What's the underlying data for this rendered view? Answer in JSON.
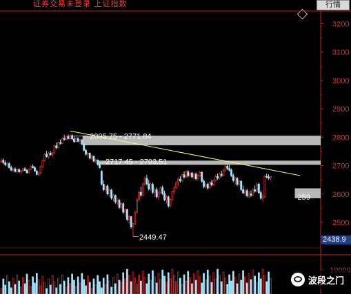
{
  "titlebar": {
    "title": "证券交易未登录  上证指数",
    "quote_button": "行情"
  },
  "current_price": "2438.9",
  "cut_label": "259",
  "watermark": "波段之门",
  "colors": {
    "up": "#e03030",
    "down": "#a0e8ff",
    "trendline": "#ffff66",
    "zone": "#c8c8c8",
    "axis": "#c82020"
  },
  "chart_data": {
    "type": "candlestick",
    "y_axis": {
      "ticks": [
        2500,
        2600,
        2700,
        2800,
        2900,
        3000,
        3100,
        3200
      ],
      "tick_labels": [
        "2500",
        "2600",
        "2700",
        "2800",
        "2900",
        "3000",
        "3100",
        "3200"
      ],
      "range": [
        2415,
        3240
      ],
      "position": "right"
    },
    "annotations": {
      "high_zone_label": "2805.75 - 2771.84",
      "mid_zone_label": "2717.45 - 2703.51",
      "low_label": "2449.47"
    },
    "zones": [
      {
        "from": 2771.84,
        "to": 2805.75,
        "start_index": 42
      },
      {
        "from": 2703.51,
        "to": 2717.45,
        "start_index": 50
      },
      {
        "from": 2585,
        "to": 2620,
        "start_index": 150
      }
    ],
    "trendline": {
      "from_index": 35,
      "from_value": 2822,
      "to_index": 152,
      "to_value": 2665
    },
    "candles": [
      [
        2715,
        2725,
        2708,
        2719
      ],
      [
        2719,
        2726,
        2705,
        2710
      ],
      [
        2710,
        2718,
        2698,
        2703
      ],
      [
        2703,
        2712,
        2695,
        2707
      ],
      [
        2707,
        2712,
        2690,
        2693
      ],
      [
        2693,
        2700,
        2680,
        2684
      ],
      [
        2684,
        2692,
        2678,
        2688
      ],
      [
        2688,
        2694,
        2676,
        2679
      ],
      [
        2679,
        2690,
        2673,
        2686
      ],
      [
        2686,
        2691,
        2675,
        2678
      ],
      [
        2678,
        2685,
        2670,
        2682
      ],
      [
        2682,
        2692,
        2678,
        2689
      ],
      [
        2689,
        2695,
        2680,
        2683
      ],
      [
        2683,
        2688,
        2672,
        2675
      ],
      [
        2675,
        2690,
        2672,
        2688
      ],
      [
        2688,
        2700,
        2684,
        2697
      ],
      [
        2697,
        2705,
        2690,
        2693
      ],
      [
        2693,
        2698,
        2678,
        2681
      ],
      [
        2681,
        2686,
        2666,
        2669
      ],
      [
        2669,
        2678,
        2662,
        2675
      ],
      [
        2675,
        2700,
        2670,
        2696
      ],
      [
        2696,
        2722,
        2692,
        2718
      ],
      [
        2718,
        2744,
        2714,
        2740
      ],
      [
        2740,
        2752,
        2728,
        2732
      ],
      [
        2732,
        2748,
        2725,
        2744
      ],
      [
        2744,
        2752,
        2735,
        2739
      ],
      [
        2739,
        2748,
        2730,
        2745
      ],
      [
        2745,
        2775,
        2742,
        2770
      ],
      [
        2770,
        2782,
        2758,
        2763
      ],
      [
        2763,
        2785,
        2760,
        2781
      ],
      [
        2781,
        2792,
        2774,
        2778
      ],
      [
        2778,
        2800,
        2775,
        2796
      ],
      [
        2796,
        2808,
        2788,
        2792
      ],
      [
        2792,
        2806,
        2790,
        2803
      ],
      [
        2803,
        2810,
        2792,
        2795
      ],
      [
        2795,
        2812,
        2790,
        2806
      ],
      [
        2806,
        2810,
        2790,
        2794
      ],
      [
        2794,
        2803,
        2780,
        2785
      ],
      [
        2785,
        2800,
        2782,
        2796
      ],
      [
        2796,
        2800,
        2782,
        2786
      ],
      [
        2786,
        2795,
        2775,
        2790
      ],
      [
        2790,
        2794,
        2772,
        2776
      ],
      [
        2776,
        2784,
        2750,
        2754
      ],
      [
        2754,
        2760,
        2735,
        2740
      ],
      [
        2740,
        2748,
        2728,
        2744
      ],
      [
        2744,
        2746,
        2722,
        2726
      ],
      [
        2726,
        2738,
        2720,
        2733
      ],
      [
        2733,
        2736,
        2712,
        2716
      ],
      [
        2716,
        2725,
        2708,
        2720
      ],
      [
        2720,
        2722,
        2700,
        2704
      ],
      [
        2704,
        2710,
        2690,
        2693
      ],
      [
        2680,
        2684,
        2630,
        2635
      ],
      [
        2635,
        2648,
        2610,
        2615
      ],
      [
        2615,
        2632,
        2605,
        2628
      ],
      [
        2628,
        2634,
        2595,
        2600
      ],
      [
        2600,
        2620,
        2590,
        2614
      ],
      [
        2614,
        2618,
        2580,
        2586
      ],
      [
        2586,
        2600,
        2574,
        2595
      ],
      [
        2595,
        2598,
        2566,
        2572
      ],
      [
        2572,
        2584,
        2560,
        2578
      ],
      [
        2578,
        2582,
        2548,
        2553
      ],
      [
        2553,
        2570,
        2545,
        2566
      ],
      [
        2566,
        2570,
        2530,
        2536
      ],
      [
        2536,
        2550,
        2520,
        2545
      ],
      [
        2545,
        2548,
        2505,
        2510
      ],
      [
        2510,
        2525,
        2495,
        2520
      ],
      [
        2520,
        2522,
        2478,
        2484
      ],
      [
        2484,
        2500,
        2449.47,
        2495
      ],
      [
        2495,
        2540,
        2490,
        2536
      ],
      [
        2536,
        2585,
        2532,
        2580
      ],
      [
        2580,
        2612,
        2575,
        2606
      ],
      [
        2606,
        2625,
        2590,
        2596
      ],
      [
        2596,
        2640,
        2592,
        2635
      ],
      [
        2635,
        2662,
        2628,
        2655
      ],
      [
        2655,
        2668,
        2630,
        2636
      ],
      [
        2636,
        2650,
        2612,
        2618
      ],
      [
        2618,
        2640,
        2612,
        2634
      ],
      [
        2634,
        2640,
        2600,
        2606
      ],
      [
        2606,
        2622,
        2590,
        2615
      ],
      [
        2615,
        2624,
        2584,
        2590
      ],
      [
        2590,
        2610,
        2578,
        2604
      ],
      [
        2604,
        2628,
        2600,
        2622
      ],
      [
        2622,
        2630,
        2596,
        2602
      ],
      [
        2602,
        2612,
        2575,
        2580
      ],
      [
        2580,
        2596,
        2565,
        2590
      ],
      [
        2590,
        2594,
        2552,
        2558
      ],
      [
        2558,
        2585,
        2554,
        2580
      ],
      [
        2580,
        2612,
        2576,
        2608
      ],
      [
        2608,
        2628,
        2600,
        2622
      ],
      [
        2622,
        2645,
        2618,
        2640
      ],
      [
        2640,
        2658,
        2630,
        2652
      ],
      [
        2652,
        2664,
        2640,
        2646
      ],
      [
        2646,
        2672,
        2642,
        2668
      ],
      [
        2668,
        2680,
        2655,
        2660
      ],
      [
        2660,
        2684,
        2656,
        2678
      ],
      [
        2678,
        2684,
        2658,
        2664
      ],
      [
        2664,
        2680,
        2660,
        2674
      ],
      [
        2674,
        2678,
        2655,
        2660
      ],
      [
        2660,
        2675,
        2650,
        2670
      ],
      [
        2670,
        2676,
        2648,
        2654
      ],
      [
        2654,
        2670,
        2648,
        2665
      ],
      [
        2665,
        2682,
        2660,
        2676
      ],
      [
        2676,
        2680,
        2640,
        2645
      ],
      [
        2645,
        2652,
        2620,
        2626
      ],
      [
        2626,
        2640,
        2618,
        2634
      ],
      [
        2634,
        2640,
        2615,
        2621
      ],
      [
        2621,
        2645,
        2618,
        2640
      ],
      [
        2640,
        2650,
        2626,
        2632
      ],
      [
        2632,
        2652,
        2628,
        2648
      ],
      [
        2648,
        2668,
        2644,
        2662
      ],
      [
        2662,
        2672,
        2650,
        2656
      ],
      [
        2656,
        2676,
        2652,
        2670
      ],
      [
        2670,
        2682,
        2660,
        2665
      ],
      [
        2665,
        2690,
        2662,
        2684
      ],
      [
        2684,
        2702,
        2680,
        2698
      ],
      [
        2698,
        2705,
        2684,
        2690
      ],
      [
        2690,
        2703,
        2680,
        2684
      ],
      [
        2684,
        2690,
        2660,
        2665
      ],
      [
        2665,
        2672,
        2642,
        2648
      ],
      [
        2648,
        2660,
        2630,
        2655
      ],
      [
        2655,
        2660,
        2628,
        2634
      ],
      [
        2634,
        2650,
        2628,
        2645
      ],
      [
        2645,
        2648,
        2610,
        2616
      ],
      [
        2616,
        2630,
        2600,
        2604
      ],
      [
        2604,
        2618,
        2592,
        2612
      ],
      [
        2612,
        2618,
        2588,
        2594
      ],
      [
        2594,
        2610,
        2585,
        2600
      ],
      [
        2600,
        2612,
        2590,
        2596
      ],
      [
        2596,
        2620,
        2592,
        2615
      ],
      [
        2615,
        2630,
        2605,
        2610
      ],
      [
        2610,
        2640,
        2606,
        2635
      ],
      [
        2635,
        2640,
        2600,
        2605
      ],
      [
        2605,
        2612,
        2580,
        2585
      ],
      [
        2585,
        2600,
        2572,
        2590
      ],
      [
        2590,
        2668,
        2585,
        2662
      ],
      [
        2662,
        2672,
        2655,
        2660
      ],
      [
        2660,
        2670,
        2650,
        2656
      ],
      [
        2656,
        2664,
        2648,
        2661
      ]
    ]
  }
}
